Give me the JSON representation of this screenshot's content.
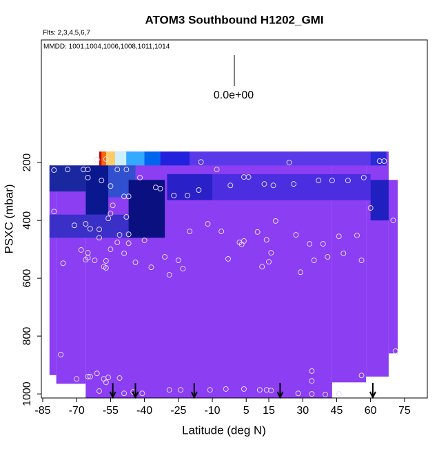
{
  "chart_data": {
    "type": "curtain",
    "title": "ATOM3 Southbound H1202_GMI",
    "subtitle": "Flts: 2,3,4,5,6,7",
    "annotation": "MMDD: 1001,1004,1006,1008,1011,1014",
    "scale_label": "0.0e+00",
    "x_label": "Latitude (deg N)",
    "y_label": "PSXC (mbar)",
    "xlim": [
      -85.6,
      85.1
    ],
    "xticks": [
      -85,
      -70,
      -55,
      -40,
      -25,
      -10,
      5,
      15,
      30,
      45,
      60,
      75
    ],
    "ylim": [
      1014,
      -224
    ],
    "yticks": [
      200,
      400,
      600,
      800,
      1000
    ],
    "column_color": "#8b3ef2",
    "columns": [
      [
        -82,
        -79,
        210,
        935
      ],
      [
        -79,
        -66,
        210,
        965
      ],
      [
        -66,
        -60,
        210,
        1014
      ],
      [
        -60,
        43,
        162,
        1014
      ],
      [
        43,
        58,
        162,
        960
      ],
      [
        58,
        68,
        162,
        940
      ],
      [
        68,
        72,
        260,
        860
      ]
    ],
    "overlays": [
      {
        "x": [
          -60,
          -59
        ],
        "y": [
          162,
          210
        ],
        "color": "#cc0000"
      },
      {
        "x": [
          -59,
          -57
        ],
        "y": [
          162,
          210
        ],
        "color": "#ff6600"
      },
      {
        "x": [
          -57,
          -53
        ],
        "y": [
          162,
          210
        ],
        "color": "#ffcc66"
      },
      {
        "x": [
          -53,
          -48
        ],
        "y": [
          162,
          210
        ],
        "color": "#ccf0ff"
      },
      {
        "x": [
          -48,
          -40
        ],
        "y": [
          162,
          210
        ],
        "color": "#33aaff"
      },
      {
        "x": [
          -40,
          -33
        ],
        "y": [
          162,
          210
        ],
        "color": "#0066ee"
      },
      {
        "x": [
          -33,
          -20
        ],
        "y": [
          162,
          210
        ],
        "color": "#2222dd"
      },
      {
        "x": [
          -20,
          60
        ],
        "y": [
          162,
          210
        ],
        "color": "#5a3ae8"
      },
      {
        "x": [
          60,
          67
        ],
        "y": [
          162,
          210
        ],
        "color": "#2a2ad8"
      },
      {
        "x": [
          -82,
          -40
        ],
        "y": [
          380,
          460
        ],
        "color": "#3a30c8"
      },
      {
        "x": [
          -82,
          -66
        ],
        "y": [
          210,
          300
        ],
        "color": "#1a28a0"
      },
      {
        "x": [
          -66,
          -56
        ],
        "y": [
          210,
          380
        ],
        "color": "#0a1890"
      },
      {
        "x": [
          -56,
          -44
        ],
        "y": [
          210,
          320
        ],
        "color": "#3050d0"
      },
      {
        "x": [
          -47,
          -31
        ],
        "y": [
          260,
          460
        ],
        "color": "#0a1080"
      },
      {
        "x": [
          -30,
          -10
        ],
        "y": [
          240,
          330
        ],
        "color": "#2a20c8"
      },
      {
        "x": [
          -10,
          60
        ],
        "y": [
          240,
          330
        ],
        "color": "#4a2ee0"
      },
      {
        "x": [
          60,
          68
        ],
        "y": [
          260,
          400
        ],
        "color": "#2020c0"
      }
    ],
    "point_color": "#e6d8ff",
    "points": {
      "x": [
        -80,
        -74,
        -67,
        -65,
        -61,
        -57,
        -52,
        -48,
        -15,
        -8,
        24,
        64,
        66,
        -65,
        -59,
        -55,
        -42,
        -35,
        -33,
        -27,
        -21,
        -16,
        -2,
        4,
        6,
        13,
        17,
        26,
        37,
        43,
        50,
        57,
        -80,
        -54,
        -49,
        -47,
        -55,
        -48,
        60,
        70,
        -71,
        -66,
        -64,
        -60,
        -60,
        -56,
        -47,
        -51,
        -52,
        -47,
        -40,
        -20,
        -12,
        -6,
        2,
        3,
        4,
        10,
        14,
        18,
        27,
        33,
        39,
        46,
        54,
        -68,
        -65,
        -65,
        -66,
        -62,
        -55,
        -49,
        -57,
        -58,
        -57,
        -44,
        -37,
        -31,
        -25,
        -23,
        -29,
        -3,
        12,
        16,
        15,
        35,
        41,
        48,
        56,
        29,
        -76,
        -77,
        71,
        -61,
        34,
        56,
        -70,
        -65,
        -64,
        -58,
        -57,
        -56,
        -51,
        34,
        -60,
        -49,
        -45,
        -41,
        -29,
        -24,
        -11,
        -4,
        4,
        11,
        14,
        16,
        28,
        34,
        40,
        46
      ],
      "y": [
        226,
        224,
        224,
        224,
        190,
        188,
        224,
        224,
        198,
        224,
        200,
        195,
        195,
        252,
        262,
        281,
        252,
        286,
        290,
        314,
        314,
        295,
        279,
        250,
        250,
        274,
        279,
        274,
        262,
        262,
        262,
        252,
        369,
        348,
        317,
        317,
        376,
        388,
        357,
        400,
        417,
        412,
        429,
        431,
        460,
        393,
        448,
        450,
        476,
        479,
        469,
        438,
        412,
        438,
        476,
        483,
        471,
        440,
        467,
        402,
        450,
        481,
        481,
        455,
        452,
        502,
        512,
        529,
        536,
        538,
        500,
        514,
        540,
        560,
        564,
        545,
        562,
        526,
        538,
        567,
        588,
        533,
        560,
        512,
        543,
        538,
        526,
        514,
        538,
        579,
        548,
        864,
        852,
        929,
        921,
        936,
        948,
        940,
        940,
        948,
        960,
        943,
        945,
        955,
        990,
        998,
        993,
        998,
        986,
        986,
        986,
        983,
        983,
        986,
        986,
        988,
        998,
        1000,
        1002,
        1000
      ]
    },
    "arrows": [
      -54,
      -44,
      -18,
      20,
      61
    ]
  }
}
